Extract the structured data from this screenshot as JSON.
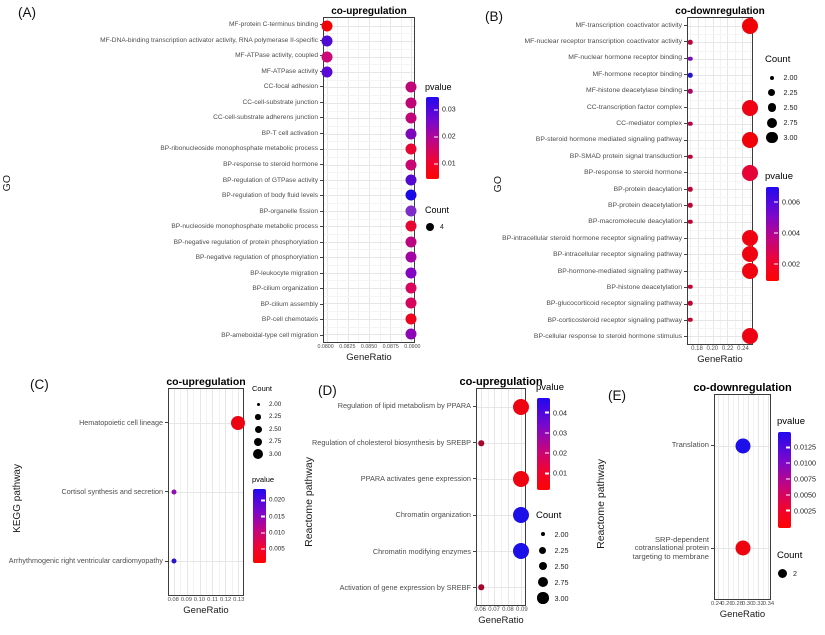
{
  "style_colors": {
    "gradient_top_blue": "#2209ef",
    "gradient_bottom_red": "#fd0302",
    "count_dot": "#000000",
    "background": "#ffffff"
  },
  "chart_data": [
    {
      "id": "A",
      "panel_label": "(A)",
      "type": "scatter",
      "title": "co-upregulation",
      "xlabel": "GeneRatio",
      "ylabel": "GO",
      "x_ticks": [
        0.08,
        0.0825,
        0.085,
        0.0875,
        0.09
      ],
      "x_tick_labels": [
        "0.0800",
        "0.0825",
        "0.0850",
        "0.0875",
        "0.0900"
      ],
      "xlim": [
        0.0797,
        0.0903
      ],
      "points": [
        {
          "category": "MF-protein C-terminus binding",
          "x": 0.08,
          "count": 4,
          "color": "#f00505"
        },
        {
          "category": "MF-DNA-binding transcription activator activity, RNA polymerase II-specific",
          "x": 0.08,
          "count": 4,
          "color": "#4d0bd3"
        },
        {
          "category": "MF-ATPase activity, coupled",
          "x": 0.08,
          "count": 4,
          "color": "#cd0877"
        },
        {
          "category": "MF-ATPase activity",
          "x": 0.08,
          "count": 4,
          "color": "#5b09d5"
        },
        {
          "category": "CC-focal adhesion",
          "x": 0.09,
          "count": 4,
          "color": "#c00677"
        },
        {
          "category": "CC-cell-substrate junction",
          "x": 0.09,
          "count": 4,
          "color": "#c00677"
        },
        {
          "category": "CC-cell-substrate adherens junction",
          "x": 0.09,
          "count": 4,
          "color": "#c00677"
        },
        {
          "category": "BP-T cell activation",
          "x": 0.09,
          "count": 4,
          "color": "#7e07bc"
        },
        {
          "category": "BP-ribonucleoside monophosphate metabolic process",
          "x": 0.09,
          "count": 4,
          "color": "#e90532"
        },
        {
          "category": "BP-response to steroid hormone",
          "x": 0.09,
          "count": 4,
          "color": "#c80570"
        },
        {
          "category": "BP-regulation of GTPase activity",
          "x": 0.09,
          "count": 4,
          "color": "#5409cf"
        },
        {
          "category": "BP-regulation of body fluid levels",
          "x": 0.09,
          "count": 4,
          "color": "#1a08e6"
        },
        {
          "category": "BP-organelle fission",
          "x": 0.09,
          "count": 4,
          "color": "#7d2cc9"
        },
        {
          "category": "BP-nucleoside monophosphate metabolic process",
          "x": 0.09,
          "count": 4,
          "color": "#e90532"
        },
        {
          "category": "BP-negative regulation of protein phosphorylation",
          "x": 0.09,
          "count": 4,
          "color": "#bb0580"
        },
        {
          "category": "BP-negative regulation of phosphorylation",
          "x": 0.09,
          "count": 4,
          "color": "#a205a4"
        },
        {
          "category": "BP-leukocyte migration",
          "x": 0.09,
          "count": 4,
          "color": "#8206c2"
        },
        {
          "category": "BP-cilium organization",
          "x": 0.09,
          "count": 4,
          "color": "#d8055e"
        },
        {
          "category": "BP-cilium assembly",
          "x": 0.09,
          "count": 4,
          "color": "#d8055e"
        },
        {
          "category": "BP-cell chemotaxis",
          "x": 0.09,
          "count": 4,
          "color": "#ee051d"
        },
        {
          "category": "BP-ameboidal-type cell migration",
          "x": 0.09,
          "count": 4,
          "color": "#8c06b6"
        }
      ],
      "legend": [
        {
          "kind": "gradient",
          "title": "pvalue",
          "tick_labels": [
            "0.03",
            "0.02",
            "0.01"
          ]
        },
        {
          "kind": "size",
          "title": "Count",
          "entries": [
            {
              "label": "4",
              "count": 4
            }
          ]
        }
      ]
    },
    {
      "id": "B",
      "panel_label": "(B)",
      "type": "scatter",
      "title": "co-downregulation",
      "xlabel": "GeneRatio",
      "ylabel": "GO",
      "x_ticks": [
        0.18,
        0.2,
        0.22,
        0.24
      ],
      "x_tick_labels": [
        "0.18",
        "0.20",
        "0.22",
        "0.24"
      ],
      "xlim": [
        0.167,
        0.253
      ],
      "points": [
        {
          "category": "MF-transcription coactivator activity",
          "x": 0.25,
          "count": 3,
          "color": "#f10208"
        },
        {
          "category": "MF-nuclear receptor transcription coactivator activity",
          "x": 0.17,
          "count": 2,
          "color": "#b9053b"
        },
        {
          "category": "MF-nuclear hormone receptor binding",
          "x": 0.17,
          "count": 2,
          "color": "#7d0cb2"
        },
        {
          "category": "MF-hormone receptor binding",
          "x": 0.17,
          "count": 2,
          "color": "#2413cd"
        },
        {
          "category": "MF-histone deacetylase binding",
          "x": 0.17,
          "count": 2,
          "color": "#a90867"
        },
        {
          "category": "CC-transcription factor complex",
          "x": 0.25,
          "count": 3,
          "color": "#ef0213"
        },
        {
          "category": "CC-mediator complex",
          "x": 0.17,
          "count": 2,
          "color": "#b80549"
        },
        {
          "category": "BP-steroid hormone mediated signaling pathway",
          "x": 0.25,
          "count": 3,
          "color": "#f10208"
        },
        {
          "category": "BP-SMAD protein signal transduction",
          "x": 0.17,
          "count": 2,
          "color": "#bd0537"
        },
        {
          "category": "BP-response to steroid hormone",
          "x": 0.25,
          "count": 3,
          "color": "#e50338"
        },
        {
          "category": "BP-protein deacylation",
          "x": 0.17,
          "count": 2,
          "color": "#bd0537"
        },
        {
          "category": "BP-protein deacetylation",
          "x": 0.17,
          "count": 2,
          "color": "#bd0537"
        },
        {
          "category": "BP-macromolecule deacylation",
          "x": 0.17,
          "count": 2,
          "color": "#bd0537"
        },
        {
          "category": "BP-intracellular steroid hormone receptor signaling pathway",
          "x": 0.25,
          "count": 3,
          "color": "#f00210"
        },
        {
          "category": "BP-intracellular receptor signaling pathway",
          "x": 0.25,
          "count": 3,
          "color": "#f00210"
        },
        {
          "category": "BP-hormone-mediated signaling pathway",
          "x": 0.25,
          "count": 3,
          "color": "#f00210"
        },
        {
          "category": "BP-histone deacetylation",
          "x": 0.17,
          "count": 2,
          "color": "#bd0537"
        },
        {
          "category": "BP-glucocorticoid receptor signaling pathway",
          "x": 0.17,
          "count": 2,
          "color": "#c00533"
        },
        {
          "category": "BP-corticosteroid receptor signaling pathway",
          "x": 0.17,
          "count": 2,
          "color": "#c00533"
        },
        {
          "category": "BP-cellular response to steroid hormone stimulus",
          "x": 0.25,
          "count": 3,
          "color": "#ef0213"
        }
      ],
      "legend": [
        {
          "kind": "size",
          "title": "Count",
          "entries": [
            {
              "label": "2.00",
              "count": 2
            },
            {
              "label": "2.25",
              "count": 2.25
            },
            {
              "label": "2.50",
              "count": 2.5
            },
            {
              "label": "2.75",
              "count": 2.75
            },
            {
              "label": "3.00",
              "count": 3
            }
          ]
        },
        {
          "kind": "gradient",
          "title": "pvalue",
          "tick_labels": [
            "0.006",
            "0.004",
            "0.002"
          ]
        }
      ]
    },
    {
      "id": "C",
      "panel_label": "(C)",
      "type": "scatter",
      "title": "co-upregulation",
      "xlabel": "GeneRatio",
      "ylabel": "KEGG pathway",
      "x_ticks": [
        0.08,
        0.09,
        0.1,
        0.11,
        0.12,
        0.13
      ],
      "x_tick_labels": [
        "0.08",
        "0.09",
        "0.10",
        "0.11",
        "0.12",
        "0.13"
      ],
      "xlim": [
        0.076,
        0.134
      ],
      "points": [
        {
          "category": "Hematopoietic cell lineage",
          "x": 0.13,
          "count": 3,
          "color": "#ed0413"
        },
        {
          "category": "Cortisol synthesis and secretion",
          "x": 0.08,
          "count": 2,
          "color": "#8d10ae"
        },
        {
          "category": "Arrhythmogenic right ventricular cardiomyopathy",
          "x": 0.08,
          "count": 2,
          "color": "#2b17c8"
        }
      ],
      "legend": [
        {
          "kind": "size",
          "title": "Count",
          "entries": [
            {
              "label": "2.00",
              "count": 2
            },
            {
              "label": "2.25",
              "count": 2.25
            },
            {
              "label": "2.50",
              "count": 2.5
            },
            {
              "label": "2.75",
              "count": 2.75
            },
            {
              "label": "3.00",
              "count": 3
            }
          ]
        },
        {
          "kind": "gradient",
          "title": "pvalue",
          "tick_labels": [
            "0.020",
            "0.015",
            "0.010",
            "0.005"
          ]
        }
      ]
    },
    {
      "id": "D",
      "panel_label": "(D)",
      "type": "scatter",
      "title": "co-upregulation",
      "xlabel": "GeneRatio",
      "ylabel": "Reactome pathway",
      "x_ticks": [
        0.06,
        0.07,
        0.08,
        0.09
      ],
      "x_tick_labels": [
        "0.06",
        "0.07",
        "0.08",
        "0.09"
      ],
      "xlim": [
        0.057,
        0.093
      ],
      "points": [
        {
          "category": "Regulation of lipid metabolism by PPARA",
          "x": 0.09,
          "count": 3,
          "color": "#ee0410"
        },
        {
          "category": "Regulation of cholesterol biosynthesis by SREBP",
          "x": 0.06,
          "count": 2,
          "color": "#a6052d"
        },
        {
          "category": "PPARA activates gene expression",
          "x": 0.09,
          "count": 3,
          "color": "#ee0410"
        },
        {
          "category": "Chromatin organization",
          "x": 0.09,
          "count": 3,
          "color": "#1d0fe8"
        },
        {
          "category": "Chromatin modifying enzymes",
          "x": 0.09,
          "count": 3,
          "color": "#1d0fe8"
        },
        {
          "category": "Activation of gene expression by SREBF",
          "x": 0.06,
          "count": 2,
          "color": "#a6052d"
        }
      ],
      "legend": [
        {
          "kind": "gradient",
          "title": "pvalue",
          "tick_labels": [
            "0.04",
            "0.03",
            "0.02",
            "0.01"
          ]
        },
        {
          "kind": "size",
          "title": "Count",
          "entries": [
            {
              "label": "2.00",
              "count": 2
            },
            {
              "label": "2.25",
              "count": 2.25
            },
            {
              "label": "2.50",
              "count": 2.5
            },
            {
              "label": "2.75",
              "count": 2.75
            },
            {
              "label": "3.00",
              "count": 3
            }
          ]
        }
      ]
    },
    {
      "id": "E",
      "panel_label": "(E)",
      "type": "scatter",
      "title": "co-downregulation",
      "xlabel": "GeneRatio",
      "ylabel": "Reactome pathway",
      "x_ticks": [
        0.24,
        0.26,
        0.28,
        0.3,
        0.32,
        0.34
      ],
      "x_tick_labels": [
        "0.24",
        "0.26",
        "0.28",
        "0.30",
        "0.32",
        "0.34"
      ],
      "xlim": [
        0.235,
        0.345
      ],
      "points": [
        {
          "category": "Translation",
          "x": 0.29,
          "count": 2,
          "color": "#1d0fe8"
        },
        {
          "category": "SRP-dependent cotranslational protein targeting to membrane",
          "x": 0.29,
          "count": 2,
          "color": "#ee0410"
        }
      ],
      "legend": [
        {
          "kind": "gradient",
          "title": "pvalue",
          "tick_labels": [
            "0.0125",
            "0.0100",
            "0.0075",
            "0.0050",
            "0.0025"
          ]
        },
        {
          "kind": "size",
          "title": "Count",
          "entries": [
            {
              "label": "2",
              "count": 2
            }
          ]
        }
      ]
    }
  ]
}
